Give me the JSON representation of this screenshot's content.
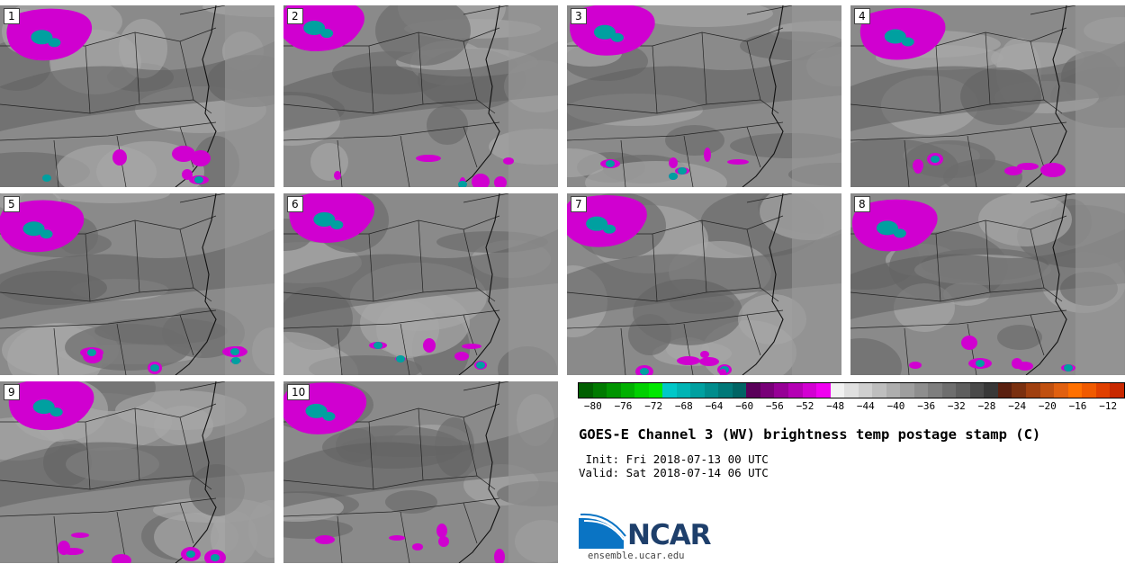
{
  "panels": [
    {
      "label": "1"
    },
    {
      "label": "2"
    },
    {
      "label": "3"
    },
    {
      "label": "4"
    },
    {
      "label": "5"
    },
    {
      "label": "6"
    },
    {
      "label": "7"
    },
    {
      "label": "8"
    },
    {
      "label": "9"
    },
    {
      "label": "10"
    }
  ],
  "colorbar": {
    "colors": [
      "#005f00",
      "#007a00",
      "#009400",
      "#00b000",
      "#00d000",
      "#00e800",
      "#00c8c8",
      "#00b4b4",
      "#00a0a0",
      "#008c8c",
      "#007878",
      "#006464",
      "#5a005a",
      "#780078",
      "#960096",
      "#b400b4",
      "#d200d2",
      "#f000f0",
      "#f2f2f2",
      "#e0e0e0",
      "#cfcfcf",
      "#bebebe",
      "#aeaeae",
      "#9e9e9e",
      "#8e8e8e",
      "#7e7e7e",
      "#6e6e6e",
      "#5e5e5e",
      "#4a4a4a",
      "#383838",
      "#5a2010",
      "#7a3010",
      "#a04010",
      "#c05010",
      "#e06010",
      "#ff7000",
      "#f05a00",
      "#e04000",
      "#c82800"
    ],
    "ticks": [
      "−80",
      "−76",
      "−72",
      "−68",
      "−64",
      "−60",
      "−56",
      "−52",
      "−48",
      "−44",
      "−40",
      "−36",
      "−32",
      "−28",
      "−24",
      "−20",
      "−16",
      "−12"
    ],
    "tick_values": [
      -80,
      -76,
      -72,
      -68,
      -64,
      -60,
      -56,
      -52,
      -48,
      -44,
      -40,
      -36,
      -32,
      -28,
      -24,
      -20,
      -16,
      -12
    ],
    "range": [
      -82,
      -10
    ]
  },
  "title": "GOES-E Channel 3 (WV) brightness temp postage stamp (C)",
  "init": " Init: Fri 2018-07-13 00 UTC",
  "valid": "Valid: Sat 2018-07-14 06 UTC",
  "logo": {
    "text": "NCAR",
    "url": "ensemble.ucar.edu"
  },
  "colors": {
    "land_mid": "#8a8a8a",
    "moist": "#707070",
    "dry": "#b0b0b0",
    "cold": "#d000d0",
    "colder": "#00a0a0"
  }
}
